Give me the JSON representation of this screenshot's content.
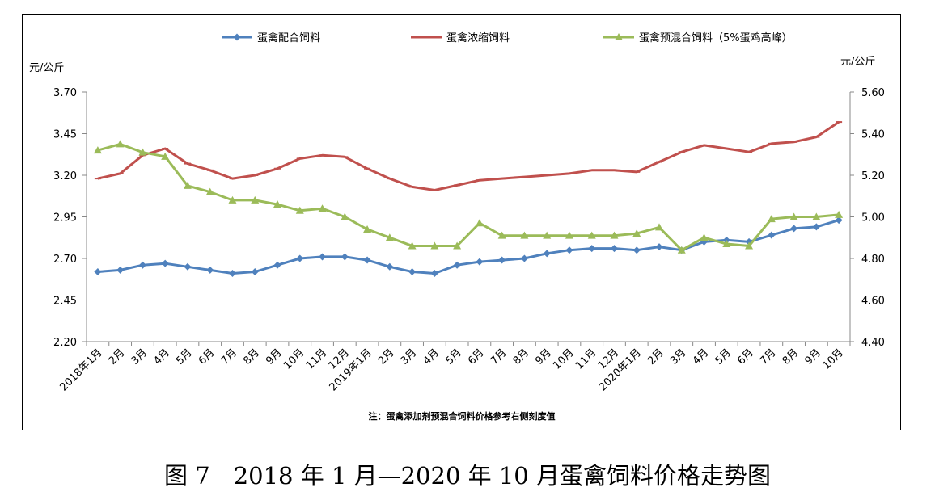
{
  "caption": "图 7　2018 年 1 月—2020 年 10 月蛋禽饲料价格走势图",
  "chart_data": {
    "type": "line",
    "left_unit": "元/公斤",
    "right_unit": "元/公斤",
    "note": "注：蛋禽添加剂预混合饲料价格参考右侧刻度值",
    "categories": [
      "2018年1月",
      "2月",
      "3月",
      "4月",
      "5月",
      "6月",
      "7月",
      "8月",
      "9月",
      "10月",
      "11月",
      "12月",
      "2019年1月",
      "2月",
      "3月",
      "4月",
      "5月",
      "6月",
      "7月",
      "8月",
      "9月",
      "10月",
      "11月",
      "12月",
      "2020年1月",
      "2月",
      "3月",
      "4月",
      "5月",
      "6月",
      "7月",
      "8月",
      "9月",
      "10月"
    ],
    "y_left": {
      "min": 2.2,
      "max": 3.7,
      "ticks": [
        "2.20",
        "2.45",
        "2.70",
        "2.95",
        "3.20",
        "3.45",
        "3.70"
      ]
    },
    "y_right": {
      "min": 4.4,
      "max": 5.6,
      "ticks": [
        "4.40",
        "4.60",
        "4.80",
        "5.00",
        "5.20",
        "5.40",
        "5.60"
      ]
    },
    "legend_position": "top",
    "grid": false,
    "series": [
      {
        "name": "蛋禽配合饲料",
        "axis": "left",
        "color": "#4F81BD",
        "marker": "diamond",
        "values": [
          2.62,
          2.63,
          2.66,
          2.67,
          2.65,
          2.63,
          2.61,
          2.62,
          2.66,
          2.7,
          2.71,
          2.71,
          2.69,
          2.65,
          2.62,
          2.61,
          2.66,
          2.68,
          2.69,
          2.7,
          2.73,
          2.75,
          2.76,
          2.76,
          2.75,
          2.77,
          2.75,
          2.8,
          2.81,
          2.8,
          2.84,
          2.88,
          2.89,
          2.93
        ]
      },
      {
        "name": "蛋禽浓缩饲料",
        "axis": "left",
        "color": "#C0504D",
        "marker": "dash",
        "values": [
          3.18,
          3.21,
          3.32,
          3.36,
          3.27,
          3.23,
          3.18,
          3.2,
          3.24,
          3.3,
          3.32,
          3.31,
          3.24,
          3.18,
          3.13,
          3.11,
          3.14,
          3.17,
          3.18,
          3.19,
          3.2,
          3.21,
          3.23,
          3.23,
          3.22,
          3.28,
          3.34,
          3.38,
          3.36,
          3.34,
          3.39,
          3.4,
          3.43,
          3.52
        ]
      },
      {
        "name": "蛋禽预混合饲料（5%蛋鸡高峰）",
        "axis": "right",
        "color": "#9BBB59",
        "marker": "triangle",
        "values": [
          5.32,
          5.35,
          5.31,
          5.29,
          5.15,
          5.12,
          5.08,
          5.08,
          5.06,
          5.03,
          5.04,
          5.0,
          4.94,
          4.9,
          4.86,
          4.86,
          4.86,
          4.97,
          4.91,
          4.91,
          4.91,
          4.91,
          4.91,
          4.91,
          4.92,
          4.95,
          4.84,
          4.9,
          4.87,
          4.86,
          4.99,
          5.0,
          5.0,
          5.01
        ]
      }
    ]
  }
}
